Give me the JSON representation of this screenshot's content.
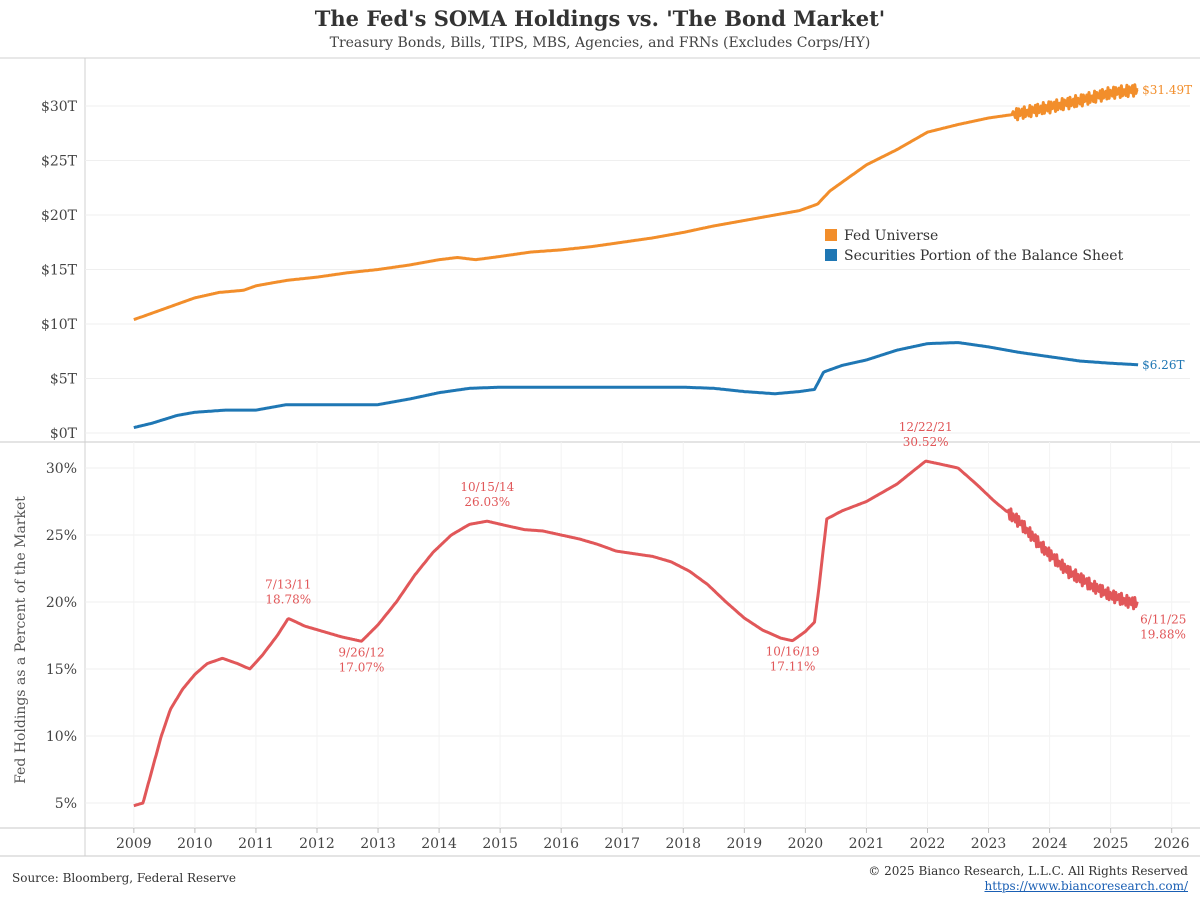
{
  "chart_data": [
    {
      "type": "line",
      "title": "The Fed's SOMA Holdings vs. 'The Bond Market'",
      "subtitle": "Treasury Bonds, Bills, TIPS, MBS, Agencies, and FRNs (Excludes Corps/HY)",
      "ylabel": "",
      "ylim": [
        0,
        33
      ],
      "yticks": [
        0,
        5,
        10,
        15,
        20,
        25,
        30
      ],
      "ytick_labels": [
        "$0T",
        "$5T",
        "$10T",
        "$15T",
        "$20T",
        "$25T",
        "$30T"
      ],
      "legend_position": "center-right",
      "series": [
        {
          "name": "Fed Universe",
          "color": "#f28e2b",
          "end_label": "$31.49T",
          "x": [
            2009.0,
            2009.5,
            2010.0,
            2010.4,
            2010.8,
            2011.0,
            2011.5,
            2012.0,
            2012.5,
            2013.0,
            2013.5,
            2014.0,
            2014.3,
            2014.6,
            2015.0,
            2015.5,
            2016.0,
            2016.5,
            2017.0,
            2017.5,
            2018.0,
            2018.5,
            2019.0,
            2019.5,
            2019.9,
            2020.2,
            2020.4,
            2020.7,
            2021.0,
            2021.5,
            2022.0,
            2022.5,
            2023.0,
            2023.5,
            2024.0,
            2024.5,
            2025.0,
            2025.45
          ],
          "values": [
            10.4,
            11.4,
            12.4,
            12.9,
            13.1,
            13.5,
            14.0,
            14.3,
            14.7,
            15.0,
            15.4,
            15.9,
            16.1,
            15.9,
            16.2,
            16.6,
            16.8,
            17.1,
            17.5,
            17.9,
            18.4,
            19.0,
            19.5,
            20.0,
            20.4,
            21.0,
            22.2,
            23.4,
            24.6,
            26.0,
            27.6,
            28.3,
            28.9,
            29.3,
            29.9,
            30.5,
            31.2,
            31.49
          ],
          "oscillation_from": 2023.4
        },
        {
          "name": "Securities Portion of the Balance Sheet",
          "color": "#1f77b4",
          "end_label": "$6.26T",
          "x": [
            2009.0,
            2009.3,
            2009.7,
            2010.0,
            2010.5,
            2011.0,
            2011.5,
            2012.0,
            2012.5,
            2013.0,
            2013.5,
            2014.0,
            2014.5,
            2015.0,
            2016.0,
            2017.0,
            2018.0,
            2018.5,
            2019.0,
            2019.5,
            2019.9,
            2020.15,
            2020.3,
            2020.6,
            2021.0,
            2021.5,
            2022.0,
            2022.5,
            2023.0,
            2023.5,
            2024.0,
            2024.5,
            2025.0,
            2025.45
          ],
          "values": [
            0.5,
            0.9,
            1.6,
            1.9,
            2.1,
            2.1,
            2.6,
            2.6,
            2.6,
            2.6,
            3.1,
            3.7,
            4.1,
            4.2,
            4.2,
            4.2,
            4.2,
            4.1,
            3.8,
            3.6,
            3.8,
            4.0,
            5.6,
            6.2,
            6.7,
            7.6,
            8.2,
            8.3,
            7.9,
            7.4,
            7.0,
            6.6,
            6.4,
            6.26
          ]
        }
      ]
    },
    {
      "type": "line",
      "xlabel": "",
      "ylabel": "Fed Holdings as a Percent of the Market",
      "ylim": [
        3,
        32
      ],
      "yticks": [
        5,
        10,
        15,
        20,
        25,
        30
      ],
      "ytick_labels": [
        "5%",
        "10%",
        "15%",
        "20%",
        "25%",
        "30%"
      ],
      "xlim": [
        2008.2,
        2026.3
      ],
      "xticks": [
        2009,
        2010,
        2011,
        2012,
        2013,
        2014,
        2015,
        2016,
        2017,
        2018,
        2019,
        2020,
        2021,
        2022,
        2023,
        2024,
        2025,
        2026
      ],
      "xtick_labels": [
        "2009",
        "2010",
        "2011",
        "2012",
        "2013",
        "2014",
        "2015",
        "2016",
        "2017",
        "2018",
        "2019",
        "2020",
        "2021",
        "2022",
        "2023",
        "2024",
        "2025",
        "2026"
      ],
      "series": [
        {
          "name": "",
          "color": "#e15759",
          "x": [
            2009.0,
            2009.15,
            2009.3,
            2009.45,
            2009.6,
            2009.8,
            2010.0,
            2010.2,
            2010.45,
            2010.7,
            2010.9,
            2011.1,
            2011.35,
            2011.53,
            2011.8,
            2012.1,
            2012.4,
            2012.73,
            2013.0,
            2013.3,
            2013.6,
            2013.9,
            2014.2,
            2014.5,
            2014.79,
            2015.1,
            2015.4,
            2015.7,
            2016.0,
            2016.3,
            2016.6,
            2016.9,
            2017.2,
            2017.5,
            2017.8,
            2018.1,
            2018.4,
            2018.7,
            2019.0,
            2019.3,
            2019.6,
            2019.79,
            2020.0,
            2020.15,
            2020.22,
            2020.35,
            2020.6,
            2021.0,
            2021.5,
            2021.97,
            2022.2,
            2022.5,
            2022.8,
            2023.1,
            2023.5,
            2023.9,
            2024.3,
            2024.7,
            2025.0,
            2025.3,
            2025.45
          ],
          "values": [
            4.8,
            5.0,
            7.5,
            10.0,
            12.0,
            13.5,
            14.6,
            15.4,
            15.8,
            15.4,
            15.0,
            16.0,
            17.5,
            18.78,
            18.2,
            17.8,
            17.4,
            17.07,
            18.3,
            20.0,
            22.0,
            23.7,
            25.0,
            25.8,
            26.03,
            25.7,
            25.4,
            25.3,
            25.0,
            24.7,
            24.3,
            23.8,
            23.6,
            23.4,
            23.0,
            22.3,
            21.3,
            20.0,
            18.8,
            17.9,
            17.3,
            17.11,
            17.8,
            18.5,
            21.0,
            26.2,
            26.8,
            27.5,
            28.8,
            30.52,
            30.3,
            30.0,
            28.8,
            27.5,
            26.0,
            24.0,
            22.3,
            21.2,
            20.5,
            20.0,
            19.88
          ],
          "oscillation_from": 2023.3
        }
      ],
      "annotations": [
        {
          "date": "7/13/11",
          "value_label": "18.78%",
          "x": 2011.53,
          "y": 18.78,
          "position": "above"
        },
        {
          "date": "9/26/12",
          "value_label": "17.07%",
          "x": 2012.73,
          "y": 17.07,
          "position": "below"
        },
        {
          "date": "10/15/14",
          "value_label": "26.03%",
          "x": 2014.79,
          "y": 26.03,
          "position": "above"
        },
        {
          "date": "10/16/19",
          "value_label": "17.11%",
          "x": 2019.79,
          "y": 17.11,
          "position": "below"
        },
        {
          "date": "12/22/21",
          "value_label": "30.52%",
          "x": 2021.97,
          "y": 30.52,
          "position": "above"
        },
        {
          "date": "6/11/25",
          "value_label": "19.88%",
          "x": 2025.45,
          "y": 19.88,
          "position": "right-below"
        }
      ]
    }
  ],
  "footer": {
    "source": "Source: Bloomberg, Federal Reserve",
    "copyright": "© 2025 Bianco Research, L.L.C. All Rights Reserved",
    "url": "https://www.biancoresearch.com/"
  }
}
